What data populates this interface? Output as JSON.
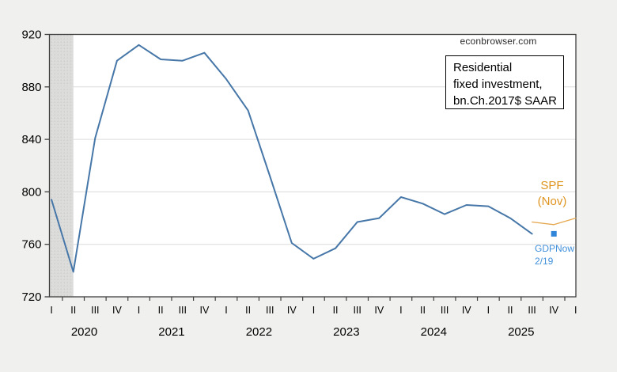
{
  "watermark": "econbrowser.com",
  "note_box": {
    "line1": "Residential",
    "line2": "fixed investment,",
    "line3": "bn.Ch.2017$ SAAR"
  },
  "annotations": {
    "spf": {
      "line1": "SPF",
      "line2": "(Nov)",
      "color": "#DE941F"
    },
    "gdpnow": {
      "line1": "GDPNow",
      "line2": "2/19",
      "color": "#4190DB"
    }
  },
  "colors": {
    "page_bg": "#f0f0ee",
    "plot_bg": "#ffffff",
    "plot_border": "#3f3f3f",
    "gridline": "#dcdcdc",
    "recession_band": "#dcdcdb",
    "actual_line": "#4677A8",
    "spf_line": "#E5A74E",
    "gdpnow_marker": "#2F85D8"
  },
  "chart_data": {
    "type": "line",
    "title": "Residential fixed investment, bn.Ch.2017$ SAAR",
    "source": "econbrowser.com",
    "ylim": [
      720,
      920
    ],
    "y_ticks": [
      720,
      760,
      800,
      840,
      880,
      920
    ],
    "grid": true,
    "x_quarter_labels": [
      "I",
      "II",
      "III",
      "IV",
      "I",
      "II",
      "III",
      "IV",
      "I",
      "II",
      "III",
      "IV",
      "I",
      "II",
      "III",
      "IV",
      "I",
      "II",
      "III",
      "IV",
      "I",
      "II",
      "III",
      "IV",
      "I"
    ],
    "x_year_labels": [
      "2020",
      "2021",
      "2022",
      "2023",
      "2024",
      "2025"
    ],
    "recession_band": {
      "from": "2020Q1",
      "to": "2020Q2"
    },
    "series": [
      {
        "name": "Residential fixed investment (actual)",
        "color": "#4677A8",
        "start_quarter": "2020Q1",
        "values": [
          794,
          739,
          841,
          900,
          912,
          901,
          900,
          906,
          886,
          862,
          812,
          761,
          749,
          757,
          777,
          780,
          796,
          791,
          783,
          790,
          789,
          780,
          768
        ]
      },
      {
        "name": "SPF (Nov) forecast",
        "color": "#E5A74E",
        "start_quarter": "2025Q3",
        "values": [
          777,
          775,
          780
        ]
      },
      {
        "name": "GDPNow 2/19 forecast",
        "color": "#2F85D8",
        "marker": "square",
        "start_quarter": "2025Q4",
        "values": [
          768
        ]
      }
    ]
  }
}
